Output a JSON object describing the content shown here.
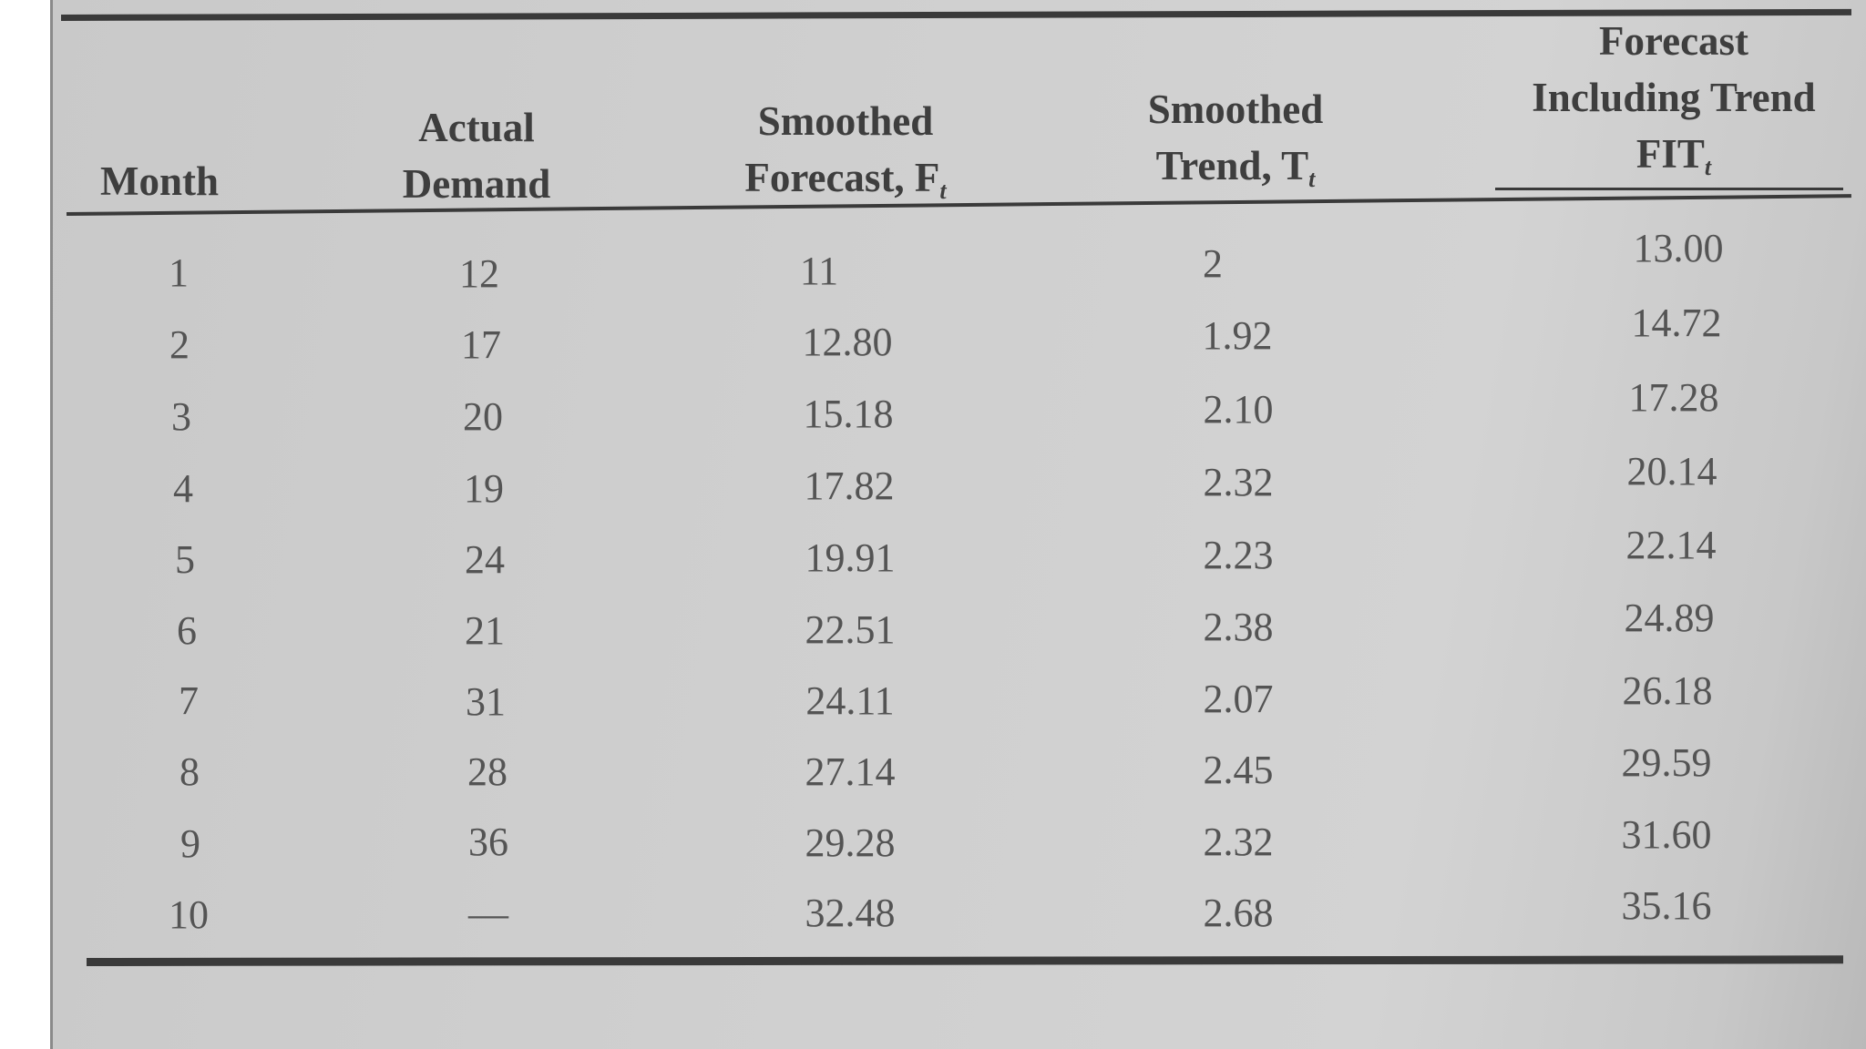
{
  "table": {
    "headers": {
      "month": "Month",
      "actual_line1": "Actual",
      "actual_line2": "Demand",
      "smoothed_forecast_line1": "Smoothed",
      "smoothed_forecast_line2": "Forecast, F",
      "smoothed_forecast_sub": "t",
      "smoothed_trend_line1": "Smoothed",
      "smoothed_trend_line2": "Trend, T",
      "smoothed_trend_sub": "t",
      "fit_line1": "Forecast",
      "fit_line2": "Including Trend",
      "fit_line3": "FIT",
      "fit_sub": "t"
    },
    "rows": [
      {
        "month": "1",
        "actual": "12",
        "forecast": "11",
        "trend": "2",
        "fit": "13.00"
      },
      {
        "month": "2",
        "actual": "17",
        "forecast": "12.80",
        "trend": "1.92",
        "fit": "14.72"
      },
      {
        "month": "3",
        "actual": "20",
        "forecast": "15.18",
        "trend": "2.10",
        "fit": "17.28"
      },
      {
        "month": "4",
        "actual": "19",
        "forecast": "17.82",
        "trend": "2.32",
        "fit": "20.14"
      },
      {
        "month": "5",
        "actual": "24",
        "forecast": "19.91",
        "trend": "2.23",
        "fit": "22.14"
      },
      {
        "month": "6",
        "actual": "21",
        "forecast": "22.51",
        "trend": "2.38",
        "fit": "24.89"
      },
      {
        "month": "7",
        "actual": "31",
        "forecast": "24.11",
        "trend": "2.07",
        "fit": "26.18"
      },
      {
        "month": "8",
        "actual": "28",
        "forecast": "27.14",
        "trend": "2.45",
        "fit": "29.59"
      },
      {
        "month": "9",
        "actual": "36",
        "forecast": "29.28",
        "trend": "2.32",
        "fit": "31.60"
      },
      {
        "month": "10",
        "actual": "—",
        "forecast": "32.48",
        "trend": "2.68",
        "fit": "35.16"
      }
    ]
  }
}
